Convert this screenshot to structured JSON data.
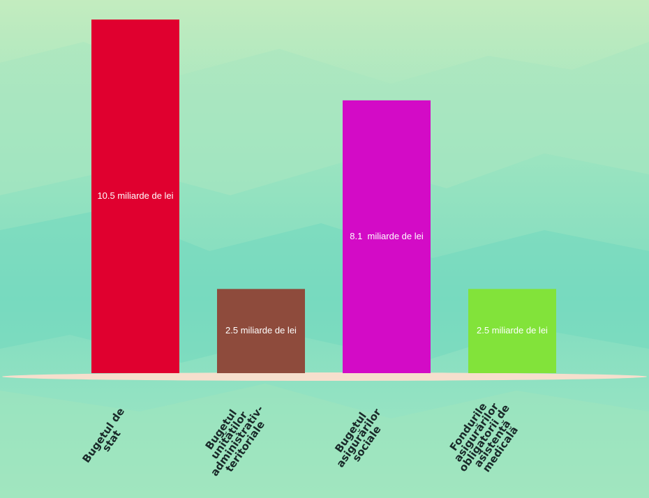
{
  "chart_data": {
    "type": "bar",
    "categories": [
      "Bugetul de stat",
      "Bugetul unităților administrativ-teritoriale",
      "Bugetul asigurărilor sociale",
      "Fondurile asigurărilor obligatorii de asistență medicală"
    ],
    "values": [
      10.5,
      2.5,
      8.1,
      2.5
    ],
    "value_labels": [
      "10.5 miliarde de lei",
      "2.5 miliarde de lei",
      "8.1  miliarde de lei",
      "2.5 miliarde de lei"
    ],
    "colors": [
      "#e0002f",
      "#8e4b3c",
      "#d30bc6",
      "#82e33a"
    ]
  }
}
